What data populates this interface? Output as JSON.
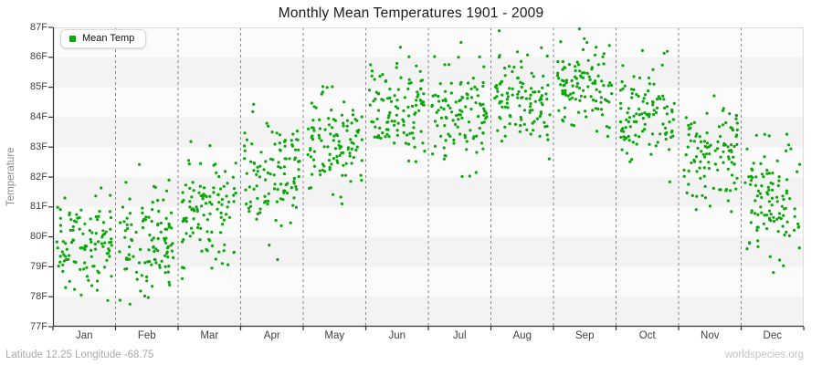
{
  "header": {
    "title": "Monthly Mean Temperatures 1901 - 2009"
  },
  "legend": {
    "label": "Mean Temp"
  },
  "axes": {
    "y_label": "Temperature",
    "y_ticks": [
      "87F",
      "86F",
      "85F",
      "84F",
      "83F",
      "82F",
      "81F",
      "80F",
      "79F",
      "78F",
      "77F"
    ],
    "x_ticks": [
      "Jan",
      "Feb",
      "Mar",
      "Apr",
      "May",
      "Jun",
      "Jul",
      "Aug",
      "Sep",
      "Oct",
      "Nov",
      "Dec"
    ]
  },
  "footer": {
    "left": "Latitude 12.25 Longitude -68.75",
    "right": "worldspecies.org"
  },
  "colors": {
    "point": "#0aa60a",
    "band_light": "#fbfbfb",
    "band_dark": "#f3f3f3",
    "grid": "#8a8a8a",
    "axis": "#333333",
    "border": "#dddddd"
  },
  "chart_data": {
    "type": "scatter",
    "title": "Monthly Mean Temperatures 1901 - 2009",
    "xlabel": "",
    "ylabel": "Temperature",
    "ylim": [
      77,
      87
    ],
    "y_tick_unit": "F",
    "y_tick_values": [
      77,
      78,
      79,
      80,
      81,
      82,
      83,
      84,
      85,
      86,
      87
    ],
    "x_categories": [
      "Jan",
      "Feb",
      "Mar",
      "Apr",
      "May",
      "Jun",
      "Jul",
      "Aug",
      "Sep",
      "Oct",
      "Nov",
      "Dec"
    ],
    "legend_position": "top-left",
    "grid": "vertical dashed lines at month boundaries; alternating 1-degree horizontal background bands",
    "series": [
      {
        "name": "Mean Temp",
        "marker": "small-filled-dot",
        "color": "#0aa60a",
        "years_range": [
          1901,
          2009
        ],
        "points_per_month": 109,
        "monthly_distribution": [
          {
            "month": "Jan",
            "mean": 79.8,
            "sd": 0.85,
            "min": 77.7,
            "max": 82.2
          },
          {
            "month": "Feb",
            "mean": 79.9,
            "sd": 0.9,
            "min": 77.5,
            "max": 83.0
          },
          {
            "month": "Mar",
            "mean": 80.7,
            "sd": 0.95,
            "min": 78.2,
            "max": 83.9
          },
          {
            "month": "Apr",
            "mean": 82.0,
            "sd": 1.0,
            "min": 79.0,
            "max": 84.8
          },
          {
            "month": "May",
            "mean": 83.2,
            "sd": 0.9,
            "min": 81.0,
            "max": 85.9
          },
          {
            "month": "Jun",
            "mean": 84.0,
            "sd": 0.9,
            "min": 81.9,
            "max": 86.8
          },
          {
            "month": "Jul",
            "mean": 84.2,
            "sd": 0.85,
            "min": 82.0,
            "max": 86.9
          },
          {
            "month": "Aug",
            "mean": 84.5,
            "sd": 0.85,
            "min": 82.5,
            "max": 87.0
          },
          {
            "month": "Sep",
            "mean": 85.0,
            "sd": 0.8,
            "min": 82.8,
            "max": 87.0
          },
          {
            "month": "Oct",
            "mean": 84.1,
            "sd": 0.85,
            "min": 81.7,
            "max": 86.3
          },
          {
            "month": "Nov",
            "mean": 82.8,
            "sd": 0.8,
            "min": 80.8,
            "max": 85.0
          },
          {
            "month": "Dec",
            "mean": 81.2,
            "sd": 0.95,
            "min": 78.4,
            "max": 83.5
          }
        ]
      }
    ]
  }
}
